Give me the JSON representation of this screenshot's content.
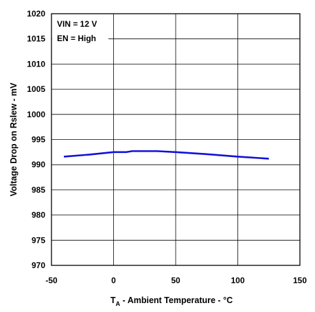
{
  "chart_data": {
    "type": "line",
    "xlabel_main": "T",
    "xlabel_sub": "A",
    "xlabel_rest": " - Ambient Temperature - °C",
    "ylabel": "Voltage Drop on Rslew - mV",
    "xlim": [
      -50,
      150
    ],
    "ylim": [
      970,
      1020
    ],
    "xticks": [
      -50,
      0,
      50,
      100,
      150
    ],
    "yticks": [
      970,
      975,
      980,
      985,
      990,
      995,
      1000,
      1005,
      1010,
      1015,
      1020
    ],
    "xgrid": [
      0,
      50,
      100
    ],
    "ygrid": [
      975,
      980,
      985,
      990,
      995,
      1000,
      1005,
      1010,
      1015
    ],
    "grid": true,
    "annotations": [
      "VIN = 12 V",
      "EN = High"
    ],
    "series": [
      {
        "color": "#1010dd",
        "x": [
          -40,
          -20,
          0,
          10,
          15,
          25,
          35,
          50,
          75,
          100,
          125
        ],
        "y": [
          991.6,
          992.0,
          992.5,
          992.5,
          992.7,
          992.7,
          992.7,
          992.5,
          992.1,
          991.6,
          991.2
        ]
      }
    ]
  }
}
